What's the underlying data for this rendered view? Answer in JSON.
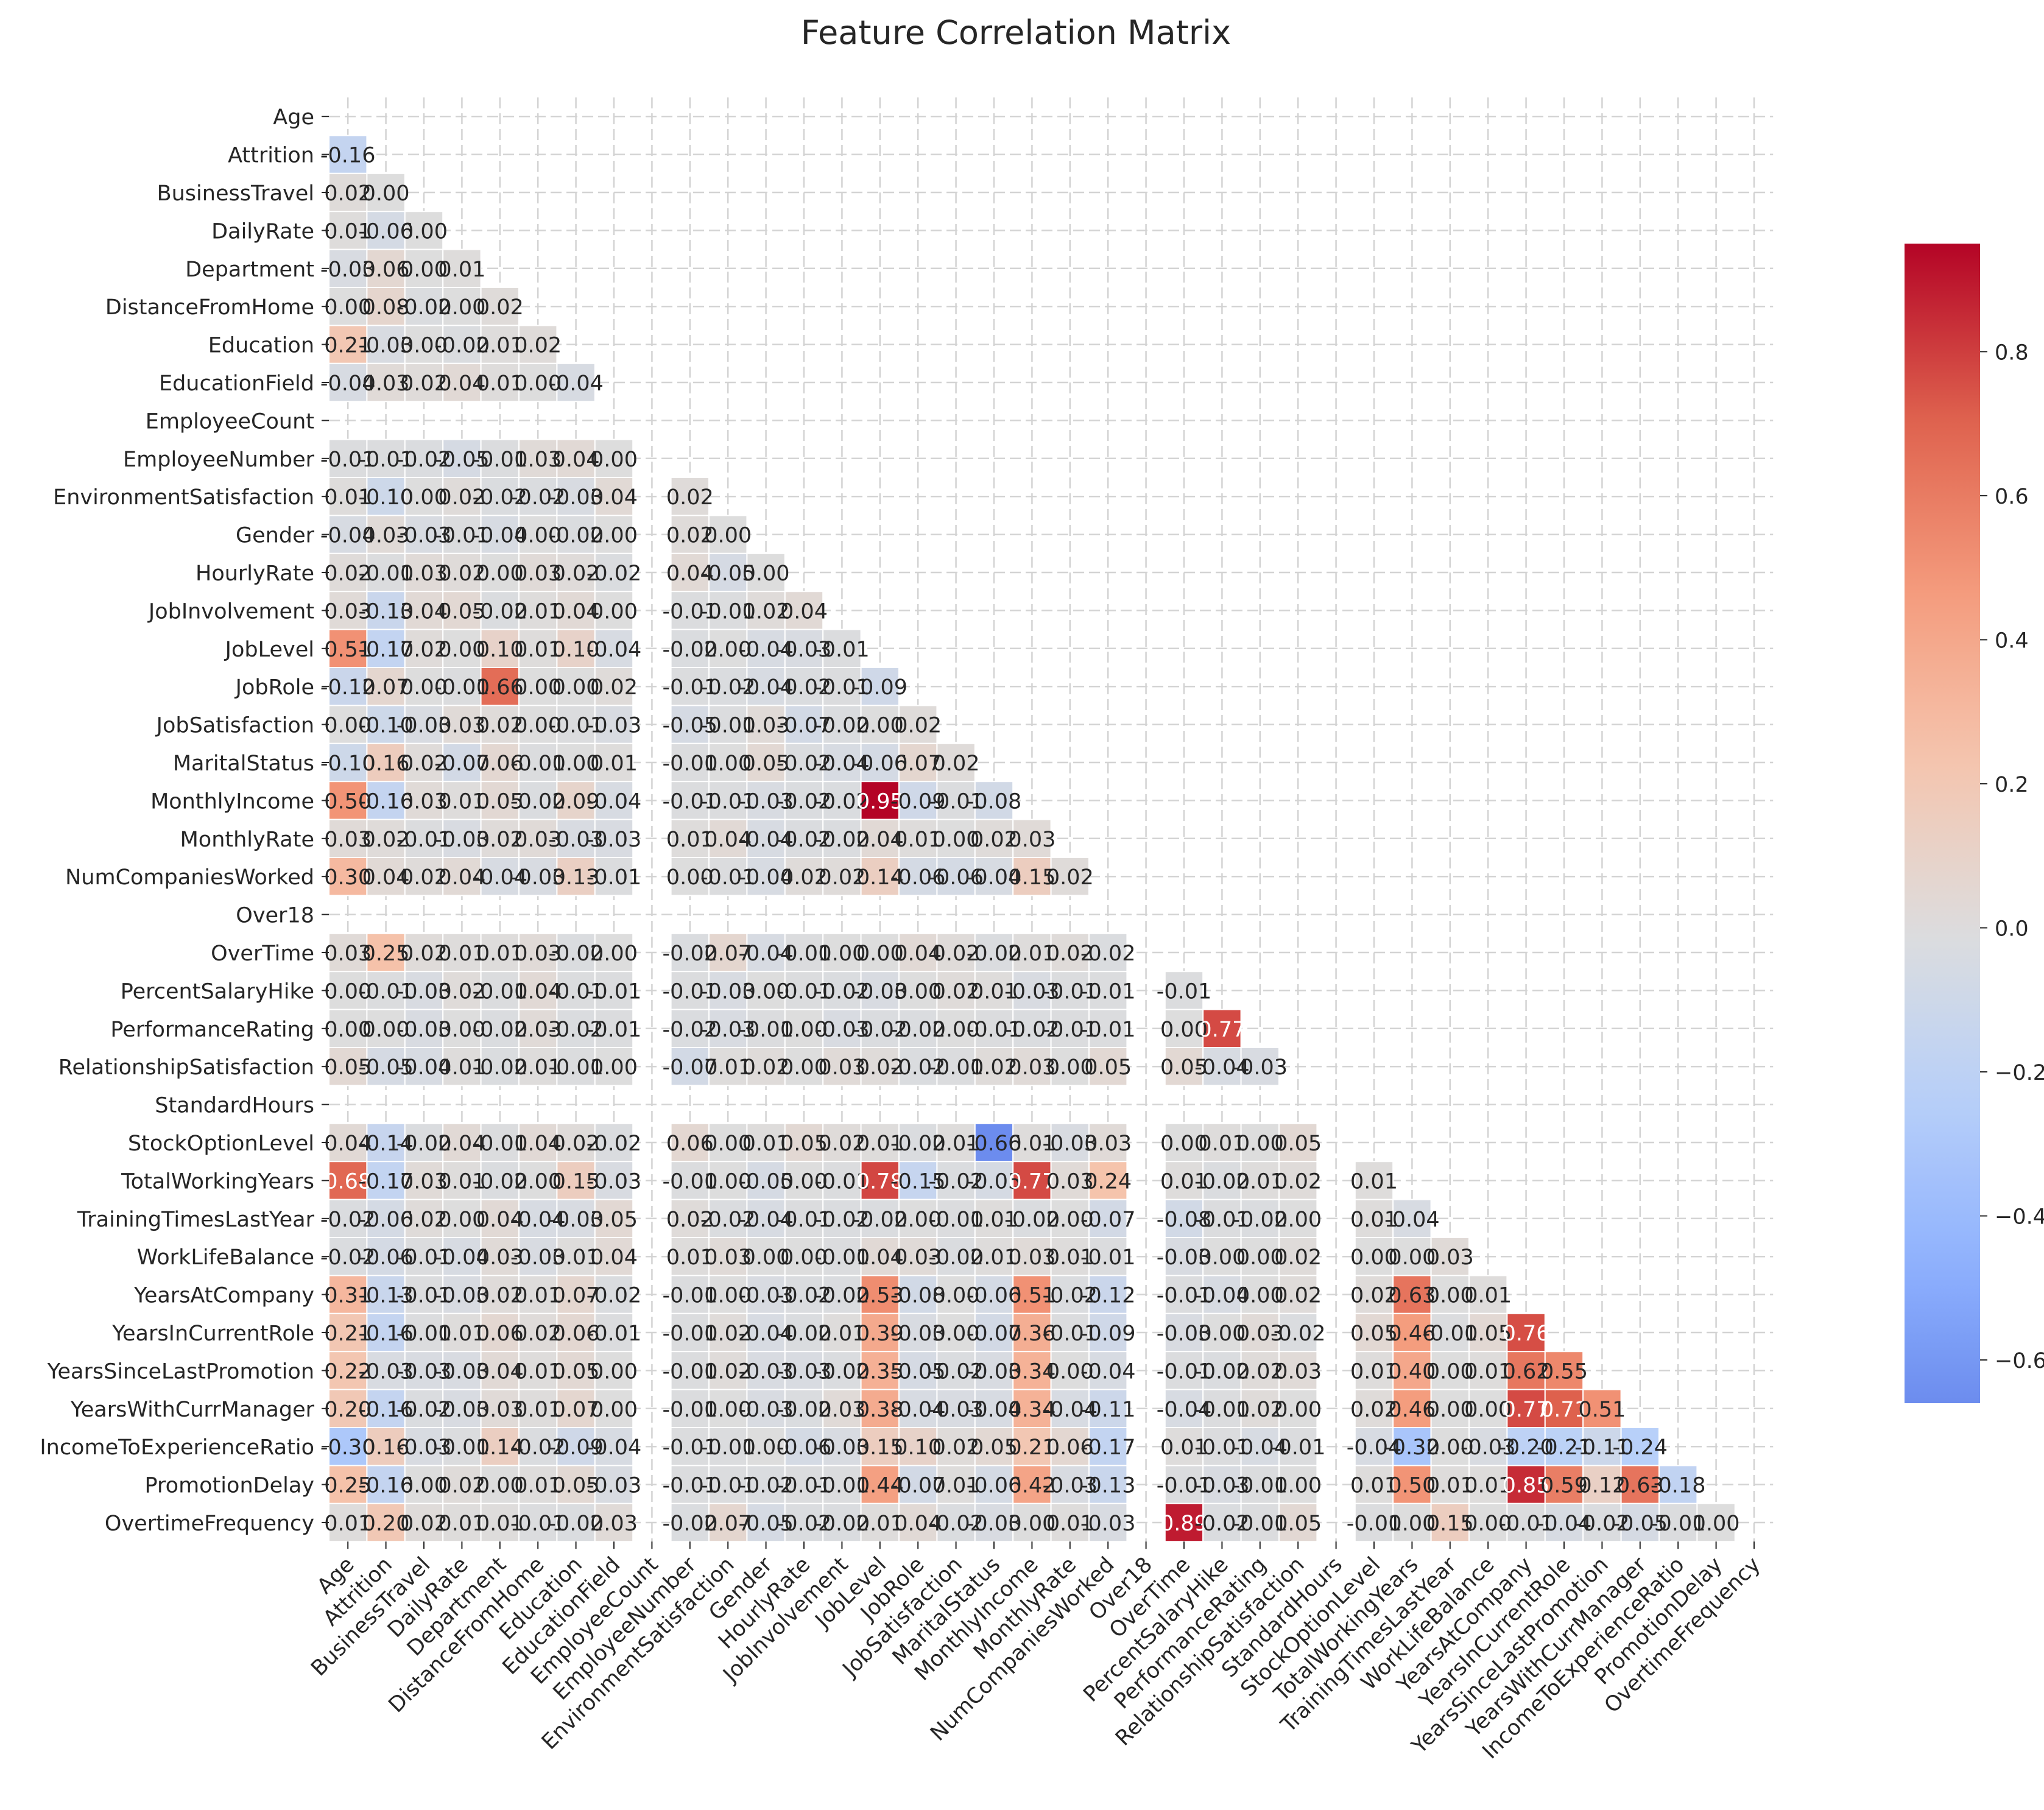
{
  "chart_data": {
    "type": "heatmap",
    "title": "Feature Correlation Matrix",
    "mask": "upper-triangle",
    "colormap": "coolwarm",
    "colorbar": {
      "vmin": -0.66,
      "vmax": 0.95,
      "ticks": [
        -0.6,
        -0.4,
        -0.2,
        0.0,
        0.2,
        0.4,
        0.6,
        0.8
      ],
      "tick_labels": [
        "−0.6",
        "−0.4",
        "−0.2",
        "0.0",
        "0.2",
        "0.4",
        "0.6",
        "0.8"
      ]
    },
    "grid": true,
    "labels": [
      "Age",
      "Attrition",
      "BusinessTravel",
      "DailyRate",
      "Department",
      "DistanceFromHome",
      "Education",
      "EducationField",
      "EmployeeCount",
      "EmployeeNumber",
      "EnvironmentSatisfaction",
      "Gender",
      "HourlyRate",
      "JobInvolvement",
      "JobLevel",
      "JobRole",
      "JobSatisfaction",
      "MaritalStatus",
      "MonthlyIncome",
      "MonthlyRate",
      "NumCompaniesWorked",
      "Over18",
      "OverTime",
      "PercentSalaryHike",
      "PerformanceRating",
      "RelationshipSatisfaction",
      "StandardHours",
      "StockOptionLevel",
      "TotalWorkingYears",
      "TrainingTimesLastYear",
      "WorkLifeBalance",
      "YearsAtCompany",
      "YearsInCurrentRole",
      "YearsSinceLastPromotion",
      "YearsWithCurrManager",
      "IncomeToExperienceRatio",
      "PromotionDelay",
      "OvertimeFrequency"
    ],
    "rows": [
      [],
      [
        -0.16
      ],
      [
        0.02,
        0.0
      ],
      [
        0.01,
        -0.06,
        -0.0
      ],
      [
        -0.03,
        0.06,
        -0.0,
        0.01
      ],
      [
        -0.0,
        0.08,
        -0.02,
        -0.0,
        0.02
      ],
      [
        0.21,
        -0.03,
        0.0,
        -0.02,
        0.01,
        0.02
      ],
      [
        -0.04,
        0.03,
        0.02,
        0.04,
        0.01,
        0.0,
        -0.04
      ],
      [
        null,
        null,
        null,
        null,
        null,
        null,
        null,
        null
      ],
      [
        -0.01,
        -0.01,
        -0.02,
        -0.05,
        -0.01,
        0.03,
        0.04,
        0.0,
        null
      ],
      [
        0.01,
        -0.1,
        0.0,
        0.02,
        -0.02,
        -0.02,
        -0.03,
        0.04,
        null,
        0.02
      ],
      [
        -0.04,
        0.03,
        -0.03,
        -0.01,
        -0.04,
        -0.0,
        -0.02,
        -0.0,
        null,
        0.02,
        0.0
      ],
      [
        0.02,
        -0.01,
        0.03,
        0.02,
        -0.0,
        0.03,
        0.02,
        -0.02,
        null,
        0.04,
        -0.05,
        0.0
      ],
      [
        0.03,
        -0.13,
        0.04,
        0.05,
        -0.02,
        0.01,
        0.04,
        -0.0,
        null,
        -0.01,
        -0.01,
        0.02,
        0.04
      ],
      [
        0.51,
        -0.17,
        0.02,
        0.0,
        0.1,
        0.01,
        0.1,
        -0.04,
        null,
        -0.02,
        0.0,
        -0.04,
        -0.03,
        -0.01
      ],
      [
        -0.12,
        0.07,
        0.0,
        -0.01,
        0.66,
        -0.0,
        0.0,
        0.02,
        null,
        -0.01,
        -0.02,
        -0.04,
        -0.02,
        -0.01,
        -0.09
      ],
      [
        -0.0,
        -0.1,
        -0.03,
        0.03,
        0.02,
        -0.0,
        -0.01,
        -0.03,
        null,
        -0.05,
        -0.01,
        0.03,
        -0.07,
        -0.02,
        -0.0,
        0.02
      ],
      [
        -0.1,
        0.16,
        0.02,
        -0.07,
        0.06,
        -0.01,
        0.0,
        0.01,
        null,
        -0.01,
        -0.0,
        0.05,
        -0.02,
        -0.04,
        -0.06,
        0.07,
        0.02
      ],
      [
        0.5,
        -0.16,
        0.03,
        0.01,
        0.05,
        -0.02,
        0.09,
        -0.04,
        null,
        -0.01,
        -0.01,
        -0.03,
        -0.02,
        -0.02,
        0.95,
        -0.09,
        -0.01,
        -0.08
      ],
      [
        0.03,
        0.02,
        -0.01,
        -0.03,
        0.02,
        0.03,
        -0.03,
        -0.03,
        null,
        0.01,
        0.04,
        -0.04,
        -0.02,
        -0.02,
        0.04,
        0.01,
        0.0,
        0.02,
        0.03
      ],
      [
        0.3,
        0.04,
        0.02,
        0.04,
        -0.04,
        -0.03,
        0.13,
        -0.01,
        null,
        -0.0,
        -0.01,
        -0.04,
        0.02,
        0.02,
        0.14,
        -0.06,
        -0.06,
        -0.04,
        0.15,
        0.02
      ],
      [
        null,
        null,
        null,
        null,
        null,
        null,
        null,
        null,
        null,
        null,
        null,
        null,
        null,
        null,
        null,
        null,
        null,
        null,
        null,
        null,
        null
      ],
      [
        0.03,
        0.25,
        0.02,
        0.01,
        0.01,
        0.03,
        -0.02,
        0.0,
        null,
        -0.02,
        0.07,
        -0.04,
        -0.01,
        -0.0,
        0.0,
        0.04,
        0.02,
        -0.02,
        0.01,
        0.02,
        -0.02,
        null
      ],
      [
        0.0,
        -0.01,
        -0.03,
        0.02,
        -0.01,
        0.04,
        -0.01,
        -0.01,
        null,
        -0.01,
        -0.03,
        0.0,
        -0.01,
        -0.02,
        -0.03,
        -0.0,
        0.02,
        0.01,
        -0.03,
        -0.01,
        -0.01,
        null,
        -0.01
      ],
      [
        0.0,
        0.0,
        -0.03,
        0.0,
        -0.02,
        0.03,
        -0.02,
        -0.01,
        null,
        -0.02,
        -0.03,
        -0.01,
        -0.0,
        -0.03,
        -0.02,
        -0.02,
        0.0,
        -0.01,
        -0.02,
        -0.01,
        -0.01,
        null,
        0.0,
        0.77
      ],
      [
        0.05,
        -0.05,
        -0.04,
        0.01,
        -0.02,
        0.01,
        -0.01,
        -0.0,
        null,
        -0.07,
        0.01,
        0.02,
        0.0,
        0.03,
        0.02,
        -0.02,
        -0.01,
        0.02,
        0.03,
        -0.0,
        0.05,
        null,
        0.05,
        -0.04,
        -0.03
      ],
      [
        null,
        null,
        null,
        null,
        null,
        null,
        null,
        null,
        null,
        null,
        null,
        null,
        null,
        null,
        null,
        null,
        null,
        null,
        null,
        null,
        null,
        null,
        null,
        null,
        null,
        null
      ],
      [
        0.04,
        -0.14,
        -0.02,
        0.04,
        -0.01,
        0.04,
        0.02,
        -0.02,
        null,
        0.06,
        0.0,
        0.01,
        0.05,
        0.02,
        0.01,
        -0.02,
        0.01,
        -0.66,
        0.01,
        -0.03,
        0.03,
        null,
        -0.0,
        0.01,
        0.0,
        0.05,
        null
      ],
      [
        0.68,
        -0.17,
        0.03,
        0.01,
        -0.02,
        0.0,
        0.15,
        -0.03,
        null,
        -0.01,
        -0.0,
        -0.05,
        -0.0,
        -0.01,
        0.78,
        -0.15,
        -0.02,
        -0.05,
        0.77,
        0.03,
        0.24,
        null,
        0.01,
        -0.02,
        0.01,
        0.02,
        null,
        0.01
      ],
      [
        -0.02,
        -0.06,
        0.02,
        0.0,
        0.04,
        -0.04,
        -0.03,
        0.05,
        null,
        0.02,
        -0.02,
        -0.04,
        -0.01,
        -0.02,
        -0.02,
        -0.0,
        -0.01,
        0.01,
        -0.02,
        0.0,
        -0.07,
        null,
        -0.08,
        -0.01,
        -0.02,
        0.0,
        null,
        0.01,
        -0.04
      ],
      [
        -0.02,
        -0.06,
        -0.01,
        -0.04,
        0.03,
        -0.03,
        0.01,
        0.04,
        null,
        0.01,
        0.03,
        -0.0,
        -0.0,
        -0.01,
        0.04,
        0.03,
        -0.02,
        0.01,
        0.03,
        0.01,
        -0.01,
        null,
        -0.03,
        -0.0,
        0.0,
        0.02,
        null,
        0.0,
        0.0,
        0.03
      ],
      [
        0.31,
        -0.13,
        -0.01,
        -0.03,
        0.02,
        0.01,
        0.07,
        -0.02,
        null,
        -0.01,
        0.0,
        -0.03,
        -0.02,
        -0.02,
        0.53,
        -0.08,
        -0.0,
        -0.06,
        0.51,
        -0.02,
        -0.12,
        null,
        -0.01,
        -0.04,
        0.0,
        0.02,
        null,
        0.02,
        0.63,
        0.0,
        0.01
      ],
      [
        0.21,
        -0.16,
        -0.01,
        0.01,
        0.06,
        0.02,
        0.06,
        -0.01,
        null,
        -0.01,
        0.02,
        -0.04,
        -0.02,
        0.01,
        0.39,
        -0.03,
        -0.0,
        -0.07,
        0.36,
        -0.01,
        -0.09,
        null,
        -0.03,
        -0.0,
        0.03,
        -0.02,
        null,
        0.05,
        0.46,
        -0.01,
        0.05,
        0.76
      ],
      [
        0.22,
        -0.03,
        -0.03,
        -0.03,
        0.04,
        0.01,
        0.05,
        0.0,
        null,
        -0.01,
        0.02,
        -0.03,
        -0.03,
        -0.02,
        0.35,
        -0.05,
        -0.02,
        -0.03,
        0.34,
        -0.0,
        -0.04,
        null,
        -0.01,
        -0.02,
        0.02,
        0.03,
        null,
        0.01,
        0.4,
        -0.0,
        0.01,
        0.62,
        0.55
      ],
      [
        0.2,
        -0.16,
        -0.02,
        -0.03,
        0.03,
        0.01,
        0.07,
        0.0,
        null,
        -0.01,
        -0.0,
        -0.03,
        -0.02,
        0.03,
        0.38,
        -0.04,
        -0.03,
        -0.04,
        0.34,
        -0.04,
        -0.11,
        null,
        -0.04,
        -0.01,
        0.02,
        0.0,
        null,
        0.02,
        0.46,
        -0.0,
        0.0,
        0.77,
        0.71,
        0.51
      ],
      [
        -0.3,
        0.16,
        -0.03,
        -0.01,
        0.14,
        -0.02,
        -0.09,
        -0.04,
        null,
        -0.01,
        -0.01,
        -0.0,
        -0.06,
        -0.03,
        0.15,
        0.1,
        0.02,
        0.05,
        0.21,
        0.06,
        -0.17,
        null,
        0.01,
        -0.01,
        -0.04,
        -0.01,
        null,
        -0.04,
        -0.32,
        -0.0,
        -0.03,
        -0.2,
        -0.21,
        -0.11,
        -0.24
      ],
      [
        0.25,
        -0.16,
        0.0,
        0.02,
        0.0,
        0.01,
        0.05,
        -0.03,
        null,
        -0.01,
        -0.01,
        -0.02,
        -0.01,
        -0.01,
        0.44,
        -0.07,
        0.01,
        -0.06,
        0.42,
        -0.03,
        -0.13,
        null,
        -0.01,
        -0.03,
        -0.01,
        -0.0,
        null,
        0.01,
        0.5,
        0.01,
        0.01,
        0.85,
        0.59,
        0.12,
        0.63,
        -0.18
      ],
      [
        0.01,
        0.2,
        0.02,
        0.01,
        0.01,
        -0.01,
        -0.02,
        0.03,
        null,
        -0.02,
        0.07,
        -0.05,
        -0.02,
        -0.02,
        0.01,
        0.04,
        -0.02,
        -0.03,
        0.0,
        0.01,
        -0.03,
        null,
        0.89,
        -0.02,
        -0.01,
        0.05,
        null,
        -0.01,
        -0.0,
        0.15,
        0.0,
        -0.01,
        -0.04,
        -0.02,
        -0.05,
        -0.01,
        0.0
      ]
    ]
  }
}
